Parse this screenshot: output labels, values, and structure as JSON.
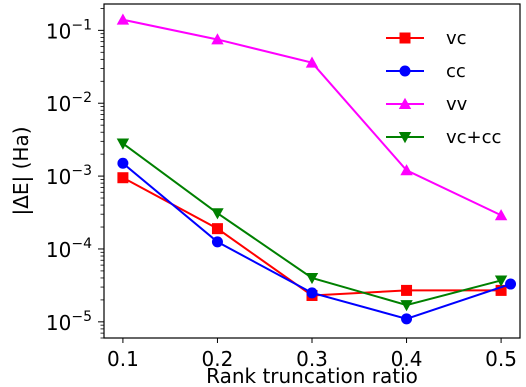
{
  "chart_data": {
    "type": "line",
    "title": "",
    "xlabel": "Rank truncation ratio",
    "ylabel": "|ΔE| (Ha)",
    "yscale": "log",
    "xlim": [
      0.08,
      0.52
    ],
    "ylim": [
      6e-06,
      0.23
    ],
    "x_ticks": [
      0.1,
      0.2,
      0.3,
      0.4,
      0.5
    ],
    "x_tick_labels": [
      "0.1",
      "0.2",
      "0.3",
      "0.4",
      "0.5"
    ],
    "y_ticks": [
      1e-05,
      0.0001,
      0.001,
      0.01,
      0.1
    ],
    "y_tick_labels": [
      {
        "base": "10",
        "exp": "−5"
      },
      {
        "base": "10",
        "exp": "−4"
      },
      {
        "base": "10",
        "exp": "−3"
      },
      {
        "base": "10",
        "exp": "−2"
      },
      {
        "base": "10",
        "exp": "−1"
      }
    ],
    "grid": false,
    "legend_position": "top-right",
    "series": [
      {
        "name": "vc",
        "color": "#ff0000",
        "marker": "square",
        "x": [
          0.1,
          0.2,
          0.3,
          0.4,
          0.5
        ],
        "y": [
          0.00095,
          0.00019,
          2.3e-05,
          2.7e-05,
          2.7e-05
        ]
      },
      {
        "name": "cc",
        "color": "#0000ff",
        "marker": "circle",
        "x": [
          0.1,
          0.2,
          0.3,
          0.4,
          0.51
        ],
        "y": [
          0.0015,
          0.000125,
          2.5e-05,
          1.1e-05,
          3.3e-05
        ]
      },
      {
        "name": "vv",
        "color": "#ff00ff",
        "marker": "triangle-up",
        "x": [
          0.1,
          0.2,
          0.3,
          0.4,
          0.5
        ],
        "y": [
          0.14,
          0.075,
          0.036,
          0.0012,
          0.00029
        ]
      },
      {
        "name": "vc+cc",
        "color": "#008000",
        "marker": "triangle-down",
        "x": [
          0.1,
          0.2,
          0.3,
          0.4,
          0.5
        ],
        "y": [
          0.0028,
          0.00031,
          4e-05,
          1.7e-05,
          3.7e-05
        ]
      }
    ]
  }
}
